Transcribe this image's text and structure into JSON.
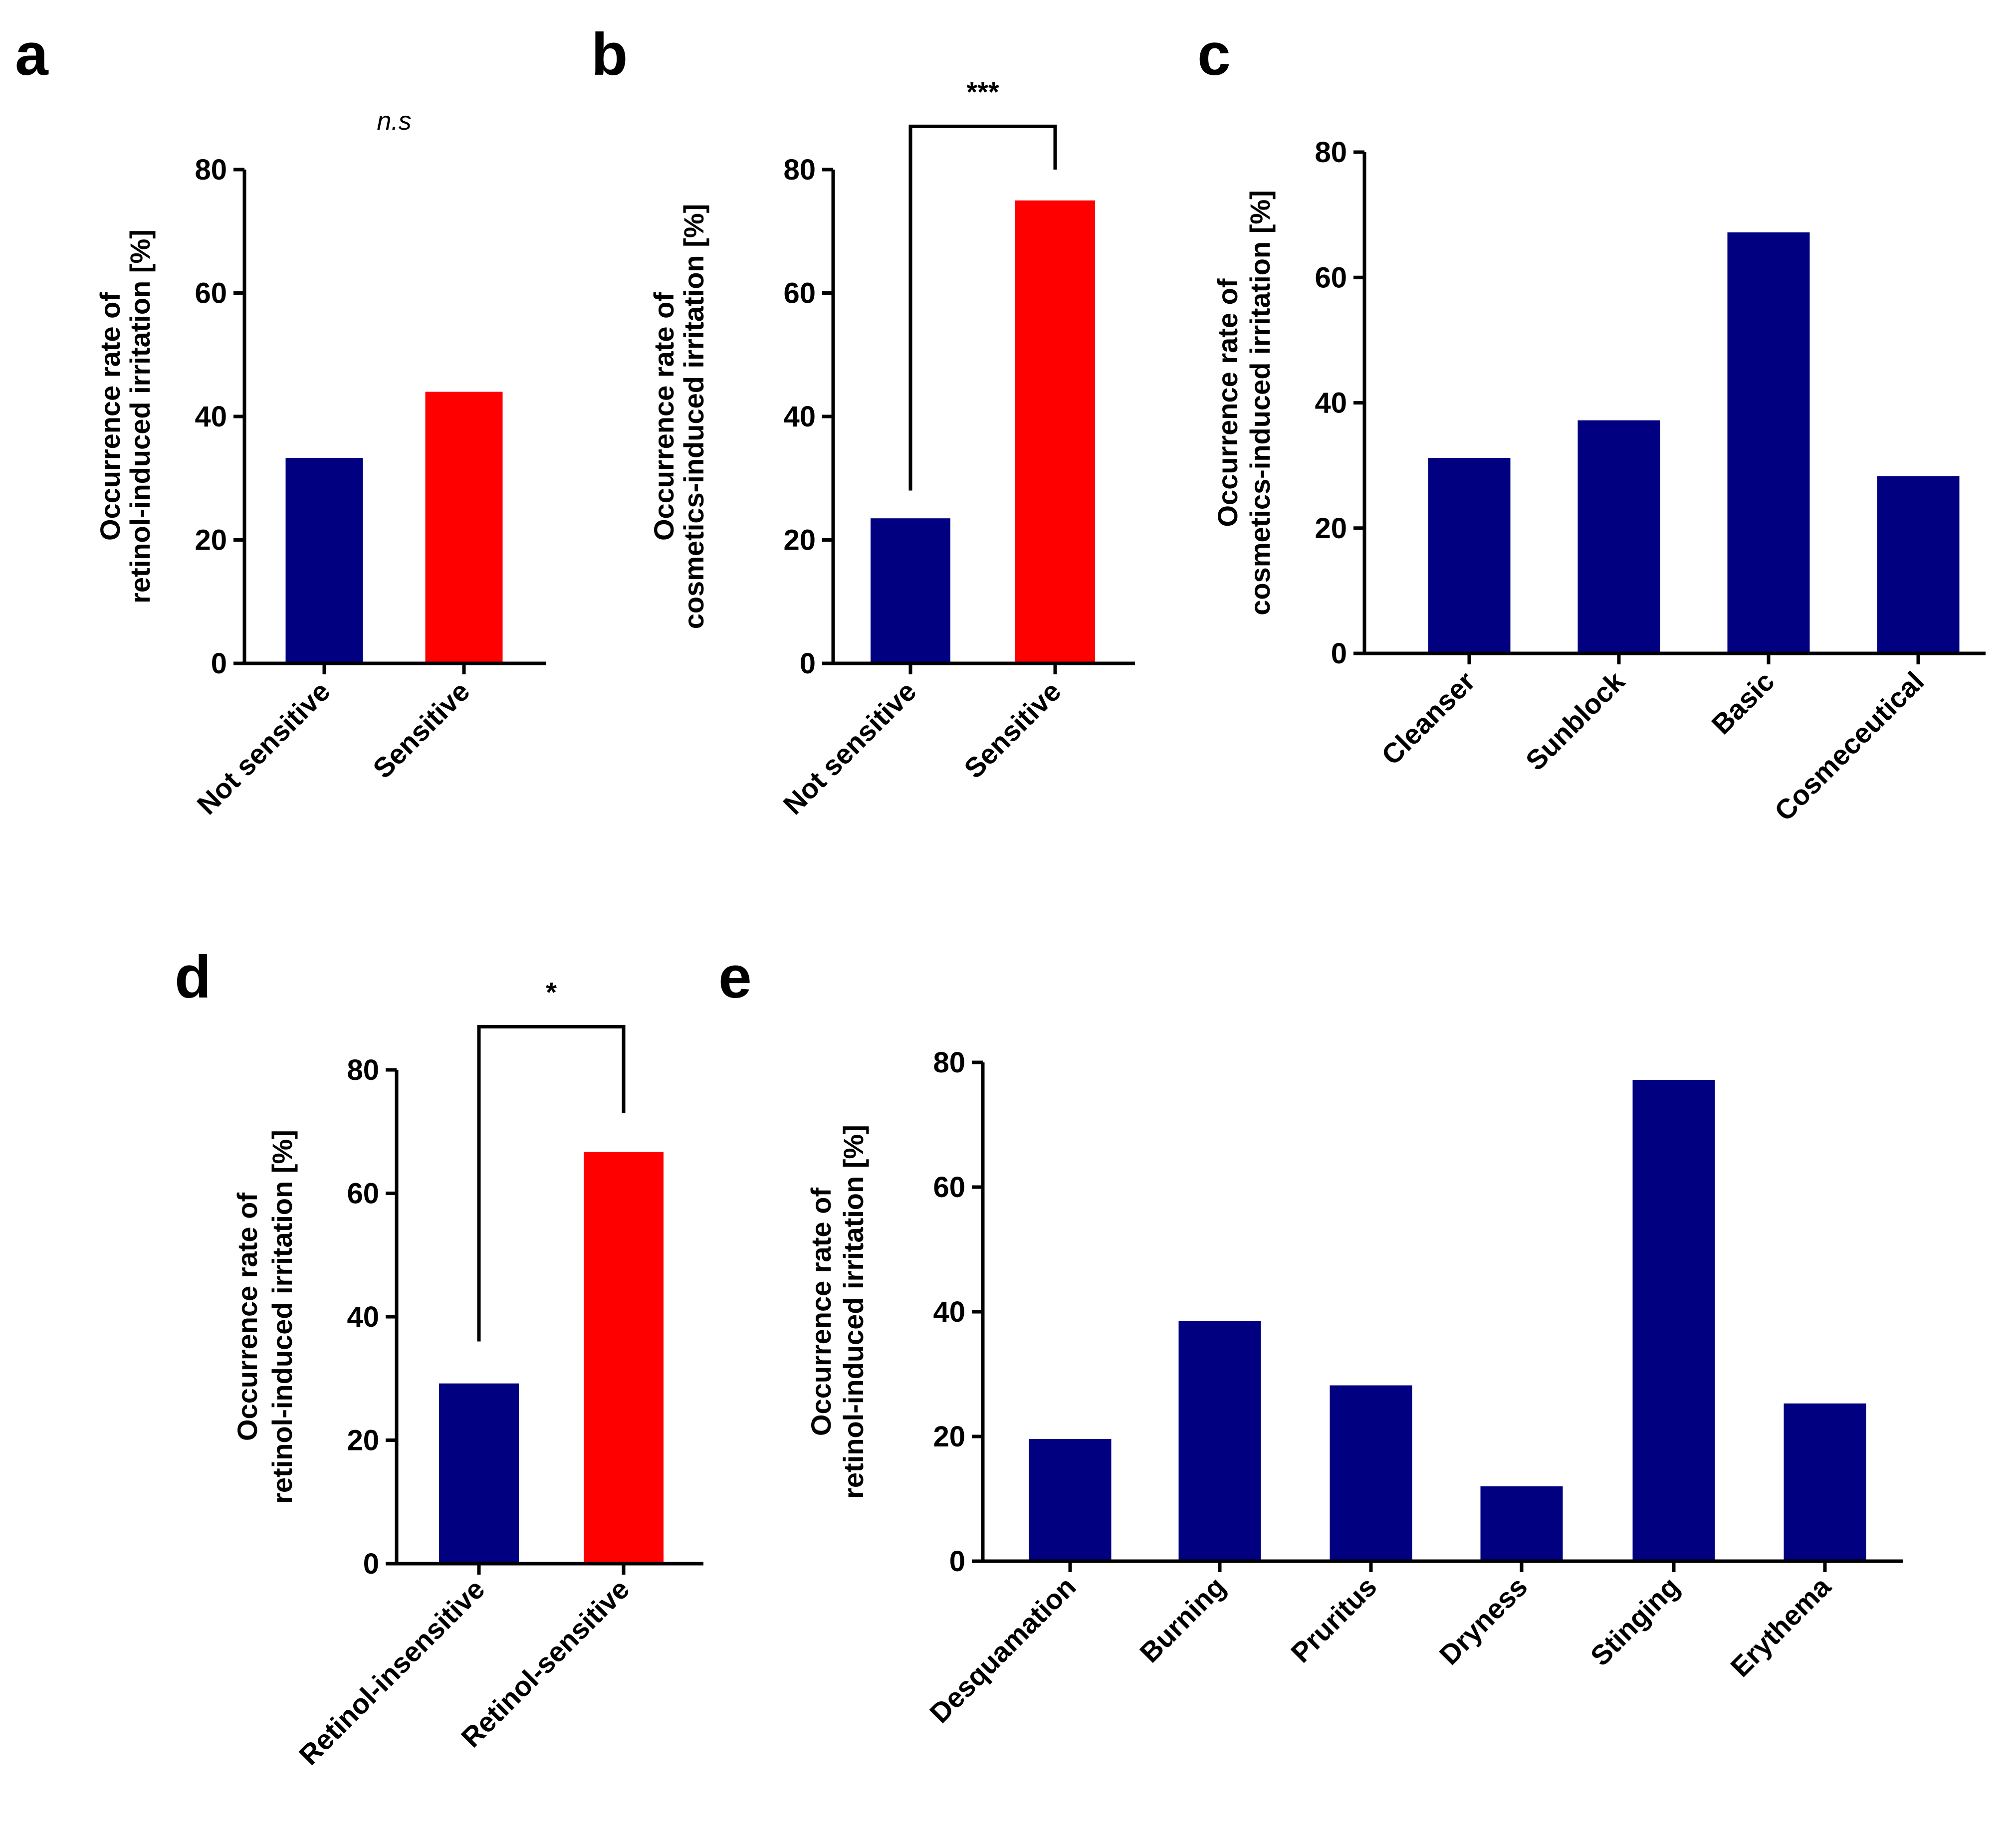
{
  "colors": {
    "navy": "#000080",
    "red": "#ff0000",
    "axis": "#000000"
  },
  "chart_data": [
    {
      "panel": "a",
      "type": "bar",
      "categories": [
        "Not sensitive",
        "Sensitive"
      ],
      "values": [
        33.3,
        44.0
      ],
      "bar_colors": [
        "#000080",
        "#ff0000"
      ],
      "ylabel_lines": [
        "Occurrence rate of",
        "retinol-induced irritation [%]"
      ],
      "ylim": [
        0,
        80
      ],
      "yticks": [
        0,
        20,
        40,
        60,
        80
      ],
      "significance": {
        "label": "n.s",
        "style": "italic",
        "bracket": false
      }
    },
    {
      "panel": "b",
      "type": "bar",
      "categories": [
        "Not sensitive",
        "Sensitive"
      ],
      "values": [
        23.5,
        75.0
      ],
      "bar_colors": [
        "#000080",
        "#ff0000"
      ],
      "ylabel_lines": [
        "Occurrence rate of",
        "cosmetics-induced irritation [%]"
      ],
      "ylim": [
        0,
        80
      ],
      "yticks": [
        0,
        20,
        40,
        60,
        80
      ],
      "significance": {
        "label": "***",
        "style": "normal",
        "bracket": true,
        "bracket_top": 87,
        "left_end": 28,
        "right_end": 80
      }
    },
    {
      "panel": "c",
      "type": "bar",
      "categories": [
        "Cleanser",
        "Sunblock",
        "Basic",
        "Cosmeceutical"
      ],
      "values": [
        31.2,
        37.2,
        67.2,
        28.3
      ],
      "bar_colors": [
        "#000080",
        "#000080",
        "#000080",
        "#000080"
      ],
      "ylabel_lines": [
        "Occurrence rate of",
        "cosmetics-induced irritation [%]"
      ],
      "ylim": [
        0,
        80
      ],
      "yticks": [
        0,
        20,
        40,
        60,
        80
      ]
    },
    {
      "panel": "d",
      "type": "bar",
      "categories": [
        "Retinol-insensitive",
        "Retinol-sensitive"
      ],
      "values": [
        29.2,
        66.7
      ],
      "bar_colors": [
        "#000080",
        "#ff0000"
      ],
      "ylabel_lines": [
        "Occurrence rate of",
        "retinol-induced irritation [%]"
      ],
      "ylim": [
        0,
        80
      ],
      "yticks": [
        0,
        20,
        40,
        60,
        80
      ],
      "significance": {
        "label": "*",
        "style": "normal",
        "bracket": true,
        "bracket_top": 87,
        "left_end": 36,
        "right_end": 73
      }
    },
    {
      "panel": "e",
      "type": "bar",
      "categories": [
        "Desquamation",
        "Burning",
        "Pruritus",
        "Dryness",
        "Stinging",
        "Erythema"
      ],
      "values": [
        19.6,
        38.5,
        28.2,
        12.0,
        77.2,
        25.3
      ],
      "bar_colors": [
        "#000080",
        "#000080",
        "#000080",
        "#000080",
        "#000080",
        "#000080"
      ],
      "ylabel_lines": [
        "Occurrence rate of",
        "retinol-induced irritation [%]"
      ],
      "ylim": [
        0,
        80
      ],
      "yticks": [
        0,
        20,
        40,
        60,
        80
      ]
    }
  ]
}
